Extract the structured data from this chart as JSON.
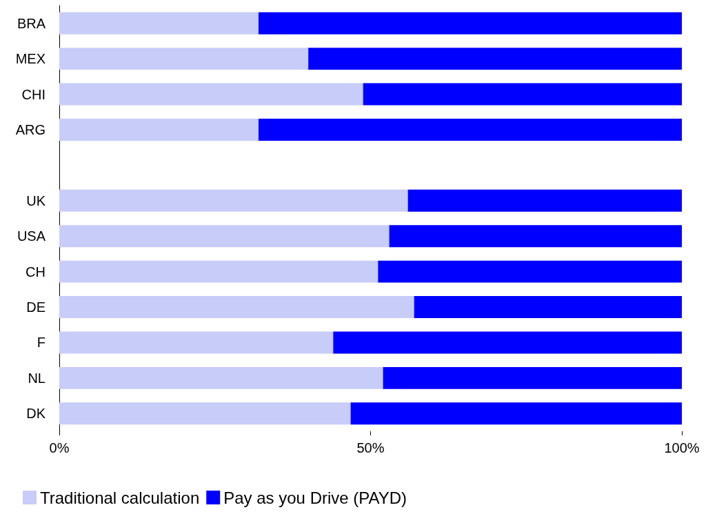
{
  "chart_data": {
    "type": "bar",
    "orientation": "horizontal",
    "stacked": true,
    "categories": [
      "BRA",
      "MEX",
      "CHI",
      "ARG",
      null,
      "UK",
      "USA",
      "CH",
      "DE",
      "F",
      "NL",
      "DK"
    ],
    "series": [
      {
        "name": "Traditional calculation",
        "color": "#c8ccf8",
        "values": [
          32,
          40,
          48.8,
          32,
          null,
          56,
          53,
          51.2,
          57,
          44,
          52,
          46.8
        ]
      },
      {
        "name": "Pay as you Drive (PAYD)",
        "color": "#0000ff",
        "values": [
          68,
          60,
          51.2,
          68,
          null,
          44,
          47,
          48.8,
          43,
          56,
          48,
          53.2
        ]
      }
    ],
    "xlim": [
      0,
      100
    ],
    "xticks": [
      {
        "value": 0,
        "label": "0%"
      },
      {
        "value": 50,
        "label": "50%"
      },
      {
        "value": 100,
        "label": "100%"
      }
    ],
    "grid": false,
    "legend": "bottom left"
  }
}
